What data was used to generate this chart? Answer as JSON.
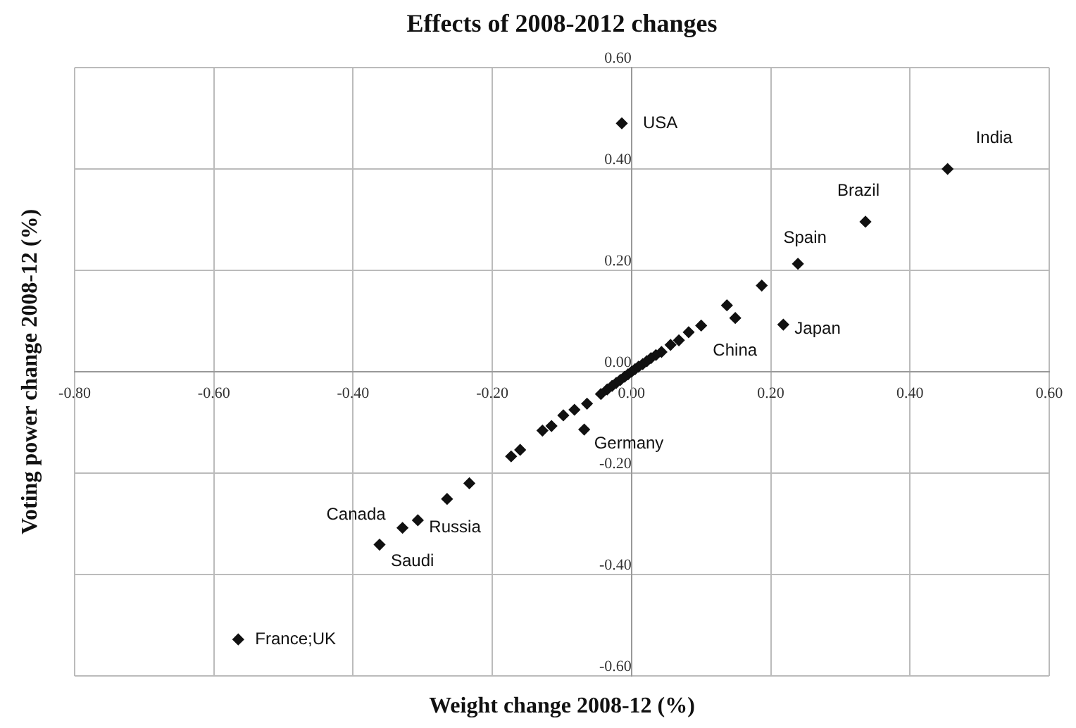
{
  "chart_data": {
    "type": "scatter",
    "title": "Effects of 2008-2012 changes",
    "xlabel": "Weight change 2008-12 (%)",
    "ylabel": "Voting power change 2008-12 (%)",
    "xlim": [
      -0.8,
      0.6
    ],
    "ylim": [
      -0.6,
      0.6
    ],
    "xticks": [
      {
        "value": -0.8,
        "label": "-0.80"
      },
      {
        "value": -0.6,
        "label": "-0.60"
      },
      {
        "value": -0.4,
        "label": "-0.40"
      },
      {
        "value": -0.2,
        "label": "-0.20"
      },
      {
        "value": 0,
        "label": "0.00"
      },
      {
        "value": 0.2,
        "label": "0.20"
      },
      {
        "value": 0.4,
        "label": "0.40"
      },
      {
        "value": 0.6,
        "label": "0.60"
      }
    ],
    "yticks": [
      {
        "value": -0.6,
        "label": "-0.60"
      },
      {
        "value": -0.4,
        "label": "-0.40"
      },
      {
        "value": -0.2,
        "label": "-0.20"
      },
      {
        "value": 0,
        "label": "0.00"
      },
      {
        "value": 0.2,
        "label": "0.20"
      },
      {
        "value": 0.4,
        "label": "0.40"
      },
      {
        "value": 0.6,
        "label": "0.60"
      }
    ],
    "grid": true,
    "legend": false,
    "marker": "diamond",
    "series": [
      {
        "color": "#111111",
        "x": [
          -0.014,
          0.454,
          0.336,
          0.239,
          0.218,
          0.187,
          0.137,
          0.149,
          0.1,
          0.082,
          0.068,
          0.056,
          0.043,
          0.035,
          0.028,
          0.022,
          0.016,
          0.01,
          0.005,
          0,
          -0.005,
          -0.01,
          -0.016,
          -0.022,
          -0.028,
          -0.035,
          -0.044,
          -0.064,
          -0.082,
          -0.098,
          -0.115,
          -0.128,
          -0.068,
          -0.16,
          -0.173,
          -0.233,
          -0.265,
          -0.307,
          -0.329,
          -0.362,
          -0.565
        ],
        "values": [
          0.49,
          0.4,
          0.296,
          0.213,
          0.093,
          0.17,
          0.131,
          0.106,
          0.091,
          0.078,
          0.062,
          0.053,
          0.039,
          0.033,
          0.027,
          0.021,
          0.015,
          0.01,
          0.005,
          0,
          -0.005,
          -0.01,
          -0.016,
          -0.022,
          -0.028,
          -0.035,
          -0.044,
          -0.063,
          -0.075,
          -0.086,
          -0.107,
          -0.116,
          -0.114,
          -0.154,
          -0.167,
          -0.22,
          -0.251,
          -0.293,
          -0.308,
          -0.341,
          -0.528
        ]
      }
    ],
    "annotations": [
      {
        "text": "USA",
        "x": -0.014,
        "y": 0.49
      },
      {
        "text": "India",
        "x": 0.454,
        "y": 0.4
      },
      {
        "text": "Brazil",
        "x": 0.336,
        "y": 0.296
      },
      {
        "text": "Spain",
        "x": 0.239,
        "y": 0.213
      },
      {
        "text": "Japan",
        "x": 0.218,
        "y": 0.093
      },
      {
        "text": "China",
        "x": 0.1,
        "y": 0.091
      },
      {
        "text": "Germany",
        "x": -0.068,
        "y": -0.114
      },
      {
        "text": "Canada",
        "x": -0.329,
        "y": -0.308
      },
      {
        "text": "Russia",
        "x": -0.307,
        "y": -0.293
      },
      {
        "text": "Saudi",
        "x": -0.362,
        "y": -0.341
      },
      {
        "text": "France;UK",
        "x": -0.565,
        "y": -0.528
      }
    ]
  }
}
